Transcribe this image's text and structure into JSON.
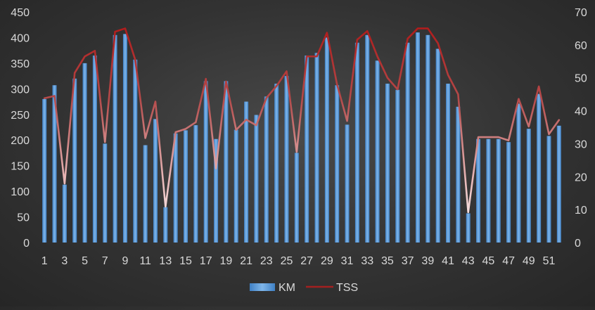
{
  "chart_data": {
    "type": "bar",
    "title": "",
    "xlabel": "",
    "ylabel": "",
    "y2label": "",
    "ylim": [
      0,
      450
    ],
    "y2lim": [
      0,
      70
    ],
    "y_ticks": [
      0,
      50,
      100,
      150,
      200,
      250,
      300,
      350,
      400,
      450
    ],
    "y2_ticks": [
      0,
      10,
      20,
      30,
      40,
      50,
      60,
      70
    ],
    "x_tick_labels": [
      "1",
      "3",
      "5",
      "7",
      "9",
      "11",
      "13",
      "15",
      "17",
      "19",
      "21",
      "23",
      "25",
      "27",
      "29",
      "31",
      "33",
      "35",
      "37",
      "39",
      "41",
      "43",
      "45",
      "47",
      "49",
      "51"
    ],
    "grid": false,
    "legend_position": "bottom",
    "categories": [
      "1",
      "2",
      "3",
      "4",
      "5",
      "6",
      "7",
      "8",
      "9",
      "10",
      "11",
      "12",
      "13",
      "14",
      "15",
      "16",
      "17",
      "18",
      "19",
      "20",
      "21",
      "22",
      "23",
      "24",
      "25",
      "26",
      "27",
      "28",
      "29",
      "30",
      "31",
      "32",
      "33",
      "34",
      "35",
      "36",
      "37",
      "38",
      "39",
      "40",
      "41",
      "42",
      "43",
      "44",
      "45",
      "46",
      "47",
      "48",
      "49",
      "50",
      "51",
      "52"
    ],
    "series": [
      {
        "name": "KM",
        "type": "bar",
        "axis": "left",
        "color": "#5b9bd5",
        "values": [
          280,
          307,
          113,
          320,
          350,
          365,
          193,
          405,
          407,
          357,
          190,
          241,
          69,
          213,
          219,
          229,
          315,
          202,
          315,
          220,
          275,
          249,
          285,
          310,
          325,
          175,
          365,
          370,
          400,
          307,
          230,
          390,
          405,
          355,
          310,
          298,
          390,
          410,
          405,
          378,
          310,
          265,
          57,
          202,
          202,
          202,
          196,
          271,
          222,
          290,
          208,
          228
        ]
      },
      {
        "name": "TSS",
        "type": "line",
        "axis": "right",
        "color": "#a32020",
        "values": [
          43.8,
          44.5,
          17.9,
          51.5,
          56.5,
          58.2,
          30.5,
          64.0,
          65.0,
          55.5,
          31.7,
          42.8,
          10.9,
          33.5,
          34.5,
          36.5,
          49.7,
          22.5,
          48.9,
          34.2,
          37.3,
          35.6,
          43.9,
          47.5,
          52.0,
          27.5,
          56.5,
          56.5,
          63.7,
          48.0,
          36.9,
          61.6,
          64.2,
          56.5,
          50.0,
          46.5,
          61.9,
          65.0,
          65.0,
          60.5,
          50.9,
          45.0,
          9.2,
          32.0,
          32.0,
          32.0,
          31.0,
          43.6,
          35.2,
          47.4,
          32.9,
          37.2
        ]
      }
    ]
  }
}
